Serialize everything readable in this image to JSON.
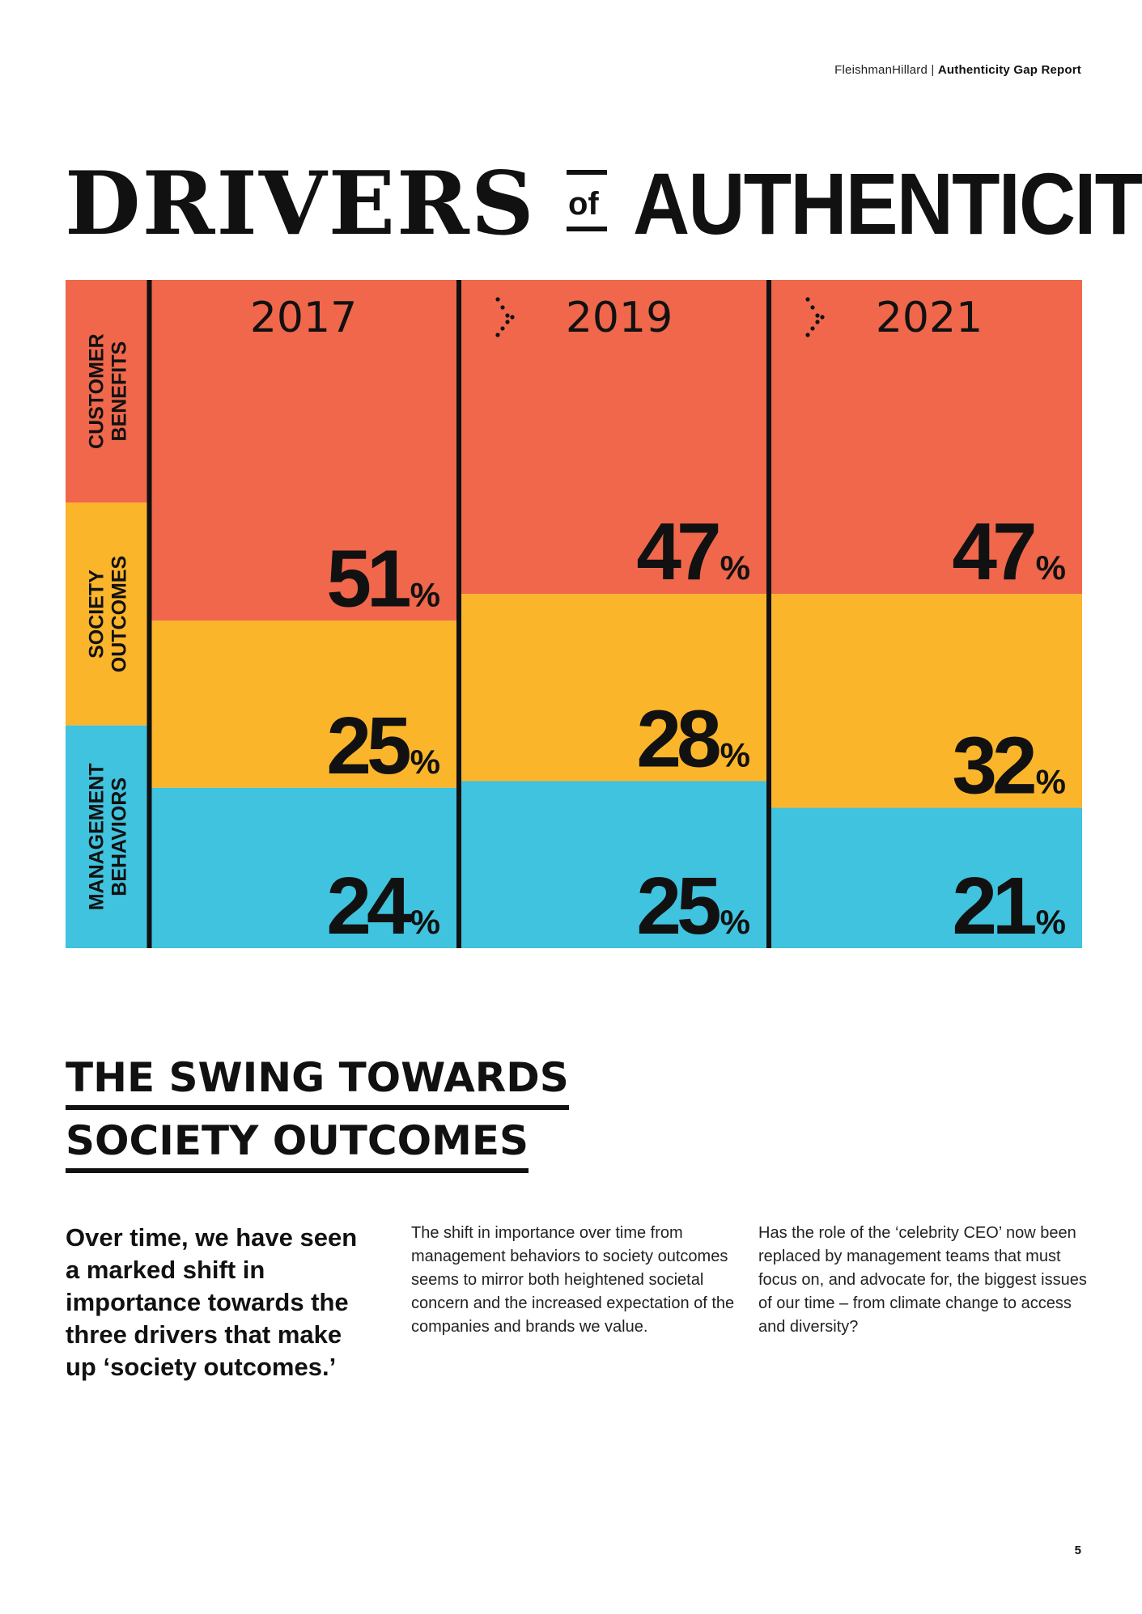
{
  "header": {
    "brand": "FleishmanHillard |",
    "report": "Authenticity Gap Report"
  },
  "title": {
    "word1": "DRIVERS",
    "connector": "of",
    "word2": "AUTHENTICITY"
  },
  "colors": {
    "customer": "#F0674B",
    "society": "#FBB52A",
    "management": "#40C3DE",
    "ink": "#111111"
  },
  "chart_data": {
    "type": "bar",
    "stacked": true,
    "title": "DRIVERS of AUTHENTICITY",
    "categories": [
      "2017",
      "2019",
      "2021"
    ],
    "series": [
      {
        "name": "CUSTOMER BENEFITS",
        "label_lines": [
          "CUSTOMER",
          "BENEFITS"
        ],
        "values": [
          51,
          47,
          47
        ],
        "color": "#F0674B"
      },
      {
        "name": "SOCIETY OUTCOMES",
        "label_lines": [
          "SOCIETY",
          "OUTCOMES"
        ],
        "values": [
          25,
          28,
          32
        ],
        "color": "#FBB52A"
      },
      {
        "name": "MANAGEMENT BEHAVIORS",
        "label_lines": [
          "MANAGEMENT",
          "BEHAVIORS"
        ],
        "values": [
          24,
          25,
          21
        ],
        "color": "#40C3DE"
      }
    ],
    "unit": "%",
    "ylim": [
      0,
      100
    ]
  },
  "section": {
    "heading_line1": "THE SWING TOWARDS",
    "heading_line2": "SOCIETY OUTCOMES"
  },
  "body": {
    "lead": "Over time, we have seen a marked shift in importance towards the three drivers that make up ‘society outcomes.’",
    "col2": "The shift in importance over time from management behaviors to society outcomes seems to mirror both heightened societal concern and the increased expectation of the companies and brands we value.",
    "col3": "Has the role of the ‘celebrity CEO’ now been replaced by management teams that must focus on, and advocate for, the biggest issues of our time – from climate change to access and diversity?"
  },
  "page_number": "5"
}
